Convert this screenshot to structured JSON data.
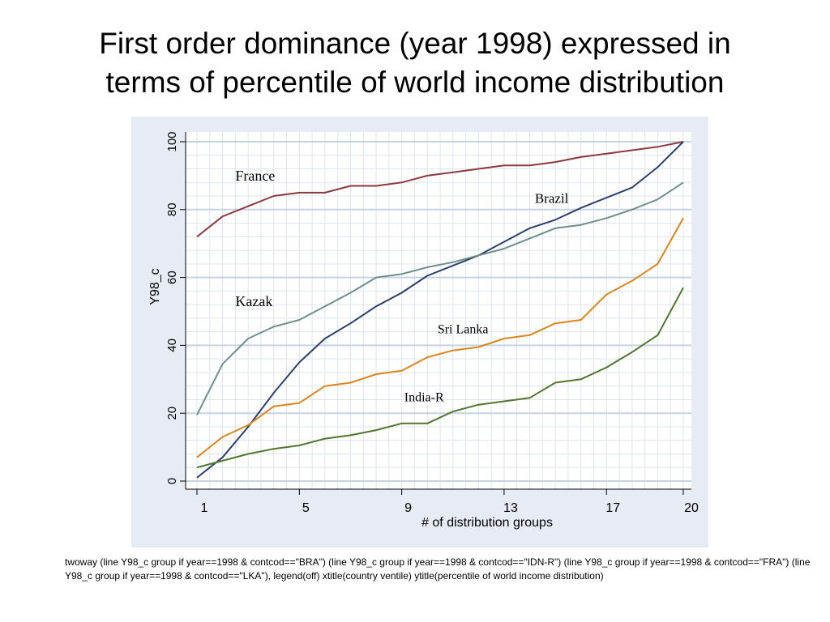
{
  "slide": {
    "title_line1": "First order dominance (year 1998) expressed in",
    "title_line2": "terms of percentile of world income distribution",
    "footnote": "twoway (line Y98_c group if year==1998 & contcod==\"BRA\") (line Y98_c group if year==1998 & contcod==\"IDN-R\") (line Y98_c group if year==1998 & contcod==\"FRA\") (line Y98_c  group if year==1998 & contcod==\"LKA\"), legend(off) xtitle(country ventile) ytitle(percentile of world income distribution)"
  },
  "chart_data": {
    "type": "line",
    "title": "",
    "xlabel": "# of distribution groups",
    "ylabel": "Y98_c",
    "xlim": [
      1,
      20
    ],
    "ylim": [
      0,
      100
    ],
    "x_ticks": [
      1,
      5,
      9,
      13,
      17,
      20
    ],
    "y_ticks": [
      0,
      20,
      40,
      60,
      80,
      100
    ],
    "grid": true,
    "legend": "off",
    "x": [
      1,
      2,
      3,
      4,
      5,
      6,
      7,
      8,
      9,
      10,
      11,
      12,
      13,
      14,
      15,
      16,
      17,
      18,
      19,
      20
    ],
    "series": [
      {
        "name": "France",
        "color": "#8b3a3f",
        "values": [
          72,
          78,
          81,
          84,
          85,
          85,
          87,
          87,
          88,
          90,
          91,
          92,
          93,
          93,
          94,
          95.5,
          96.5,
          97.5,
          98.5,
          100
        ]
      },
      {
        "name": "Brazil",
        "color": "#2b3f6b",
        "values": [
          1,
          7,
          16,
          26,
          35,
          42,
          46.5,
          51.5,
          55.5,
          60.5,
          63.5,
          66.5,
          70.5,
          74.5,
          77,
          80.5,
          83.5,
          86.5,
          92.5,
          100
        ]
      },
      {
        "name": "Kazak",
        "color": "#6f8f8d",
        "values": [
          19.5,
          34.5,
          42,
          45.5,
          47.5,
          51.5,
          55.5,
          60,
          61,
          63,
          64.5,
          66.5,
          68.5,
          71.5,
          74.5,
          75.5,
          77.5,
          80,
          83,
          88
        ]
      },
      {
        "name": "Sri Lanka",
        "color": "#d9861f",
        "values": [
          7,
          13,
          16.5,
          22,
          23,
          28,
          29,
          31.5,
          32.5,
          36.5,
          38.5,
          39.5,
          42,
          43,
          46.5,
          47.5,
          55,
          59,
          64,
          77.5
        ]
      },
      {
        "name": "India-R",
        "color": "#52752f",
        "values": [
          4,
          6,
          8,
          9.5,
          10.5,
          12.5,
          13.5,
          15,
          17,
          17,
          20.5,
          22.5,
          23.5,
          24.5,
          29,
          30,
          33.5,
          38,
          43,
          57
        ]
      }
    ]
  }
}
